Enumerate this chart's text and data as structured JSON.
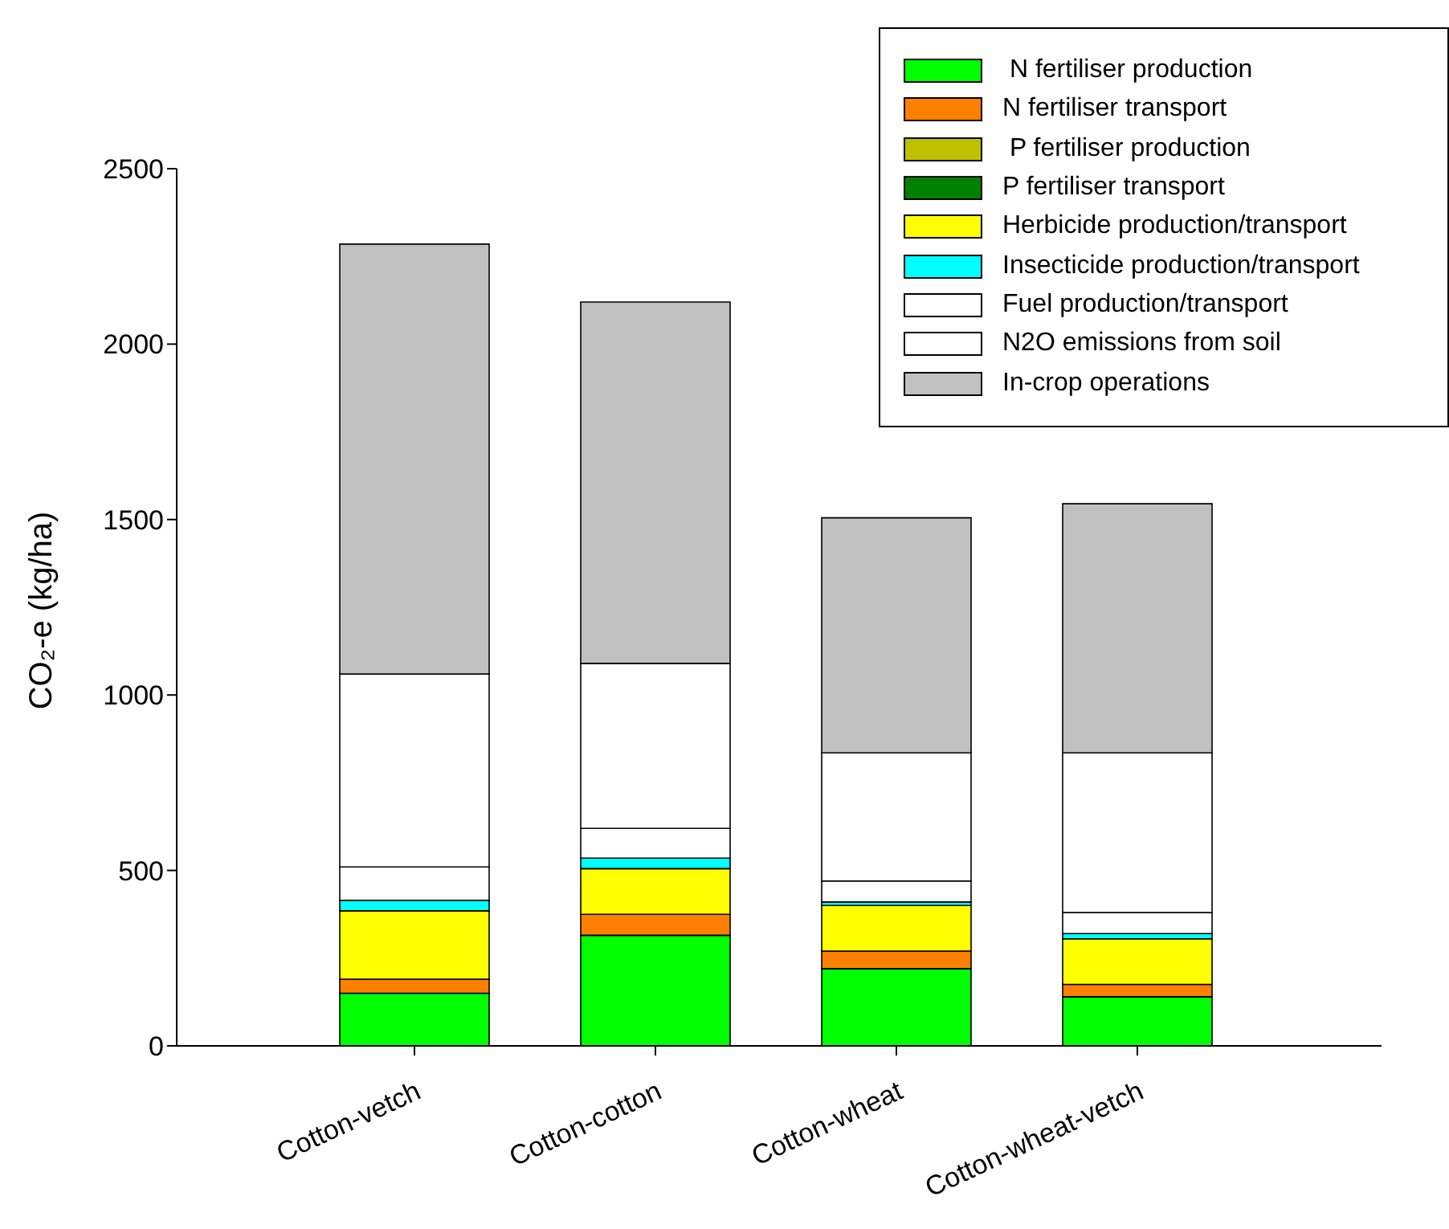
{
  "chart_data": {
    "type": "bar",
    "stacked": true,
    "ylabel": "CO₂-e (kg/ha)",
    "categories": [
      "Cotton-vetch",
      "Cotton-cotton",
      "Cotton-wheat",
      "Cotton-wheat-vetch"
    ],
    "ylim": [
      0,
      2500
    ],
    "yticks": [
      0,
      500,
      1000,
      1500,
      2000,
      2500
    ],
    "legend": "top right",
    "series": [
      {
        "name": " N fertiliser production",
        "color": "#00ff00",
        "values": [
          150,
          315,
          220,
          140
        ]
      },
      {
        "name": "N fertiliser transport",
        "color": "#ff8000",
        "values": [
          40,
          60,
          50,
          35
        ]
      },
      {
        "name": " P fertiliser production",
        "color": "#c0c000",
        "values": [
          0,
          0,
          0,
          0
        ]
      },
      {
        "name": "P fertiliser transport",
        "color": "#008000",
        "values": [
          0,
          0,
          0,
          0
        ]
      },
      {
        "name": "Herbicide production/transport",
        "color": "#ffff00",
        "values": [
          195,
          130,
          130,
          130
        ]
      },
      {
        "name": "Insecticide production/transport",
        "color": "#00ffff",
        "values": [
          30,
          30,
          10,
          15
        ]
      },
      {
        "name": "Fuel production/transport",
        "color": "#ffffff",
        "values": [
          95,
          85,
          60,
          60
        ]
      },
      {
        "name": "N2O emissions from soil",
        "color": "#ffffff",
        "values": [
          550,
          470,
          365,
          455
        ]
      },
      {
        "name": "In-crop operations",
        "color": "#c0c0c0",
        "values": [
          1225,
          1030,
          670,
          710
        ]
      }
    ]
  }
}
